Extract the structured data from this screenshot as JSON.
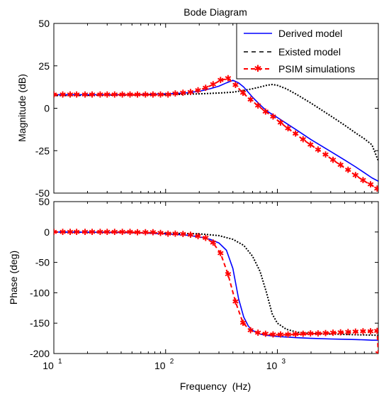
{
  "title": "Bode Diagram",
  "legend": {
    "placement": "top-right",
    "items": [
      {
        "label": "Derived model",
        "style": "solid",
        "color": "#0000ff"
      },
      {
        "label": "Existed model",
        "style": "dashed",
        "color": "#000000"
      },
      {
        "label": "PSIM simulations",
        "style": "dashed-star",
        "color": "#ff0000"
      }
    ]
  },
  "chart_data": [
    {
      "type": "line",
      "title": "Bode Diagram",
      "xlabel": "",
      "ylabel": "Magnitude (dB)",
      "xscale": "log",
      "xlim": [
        10,
        8000
      ],
      "ylim": [
        -50,
        50
      ],
      "yticks": [
        "-50",
        "-25",
        "0",
        "25",
        "50"
      ],
      "grid": false,
      "series": [
        {
          "name": "Derived model",
          "color": "#0000ff",
          "x": [
            10,
            50,
            100,
            150,
            200,
            250,
            300,
            350,
            400,
            450,
            500,
            600,
            700,
            800,
            1000,
            1500,
            2000,
            3000,
            4000,
            5000,
            6000,
            7000,
            8000
          ],
          "y": [
            8,
            8,
            8.5,
            9,
            10,
            11.5,
            13,
            15,
            16.5,
            15,
            12.5,
            6.5,
            2,
            -1.5,
            -5.5,
            -13,
            -18.5,
            -25.5,
            -30.5,
            -34.5,
            -38,
            -41,
            -43
          ]
        },
        {
          "name": "Existed model",
          "color": "#000000",
          "x": [
            10,
            100,
            200,
            300,
            400,
            500,
            600,
            700,
            800,
            900,
            1000,
            1200,
            1500,
            2000,
            3000,
            4000,
            5000,
            6000,
            7000,
            8000
          ],
          "y": [
            7.5,
            8,
            8.5,
            9,
            9.5,
            10.5,
            11.5,
            12.5,
            13.5,
            14,
            13.5,
            11.5,
            8,
            3,
            -4.5,
            -10,
            -14.5,
            -18,
            -21.5,
            -31
          ]
        },
        {
          "name": "PSIM simulations",
          "color": "#ff0000",
          "x": [
            10,
            12,
            14,
            16,
            19,
            22,
            26,
            30,
            35,
            41,
            48,
            56,
            66,
            77,
            90,
            105,
            122,
            143,
            167,
            195,
            228,
            266,
            310,
            362,
            422,
            493,
            575,
            671,
            783,
            914,
            1067,
            1245,
            1453,
            1696,
            1980,
            2310,
            2696,
            3147,
            3672,
            4286,
            5002,
            5838,
            6813,
            7800
          ],
          "y": [
            8,
            8,
            8,
            8,
            8,
            8,
            8,
            8,
            8,
            8,
            8,
            8,
            8,
            8,
            8,
            8,
            8.5,
            9,
            9.5,
            10.5,
            12,
            14,
            16.5,
            17.5,
            13.5,
            9,
            5,
            1.5,
            -2,
            -5,
            -8.5,
            -12,
            -15,
            -18.5,
            -21.5,
            -24.5,
            -27.5,
            -30.5,
            -33.5,
            -36.5,
            -39.5,
            -42.5,
            -45,
            -47.5
          ]
        }
      ]
    },
    {
      "type": "line",
      "title": "",
      "xlabel": "Frequency  (Hz)",
      "ylabel": "Phase (deg)",
      "xscale": "log",
      "xlim": [
        10,
        8000
      ],
      "ylim": [
        -200,
        50
      ],
      "yticks": [
        "-200",
        "-150",
        "-100",
        "-50",
        "0",
        "50"
      ],
      "xticks": [
        {
          "base": "10",
          "exp": "1",
          "value": 10
        },
        {
          "base": "10",
          "exp": "2",
          "value": 100
        },
        {
          "base": "10",
          "exp": "3",
          "value": 1000
        }
      ],
      "grid": false,
      "series": [
        {
          "name": "Derived model",
          "color": "#0000ff",
          "x": [
            10,
            50,
            100,
            150,
            200,
            250,
            300,
            350,
            400,
            450,
            500,
            550,
            600,
            700,
            800,
            1000,
            1500,
            2000,
            3000,
            4000,
            5000,
            6000,
            7000,
            8000
          ],
          "y": [
            0,
            -1,
            -3,
            -5,
            -8,
            -12,
            -18,
            -30,
            -60,
            -110,
            -140,
            -155,
            -162,
            -168,
            -170,
            -172,
            -174,
            -175,
            -176,
            -176.5,
            -177,
            -177.5,
            -178,
            -178
          ]
        },
        {
          "name": "Existed model",
          "color": "#000000",
          "x": [
            10,
            50,
            100,
            200,
            300,
            400,
            500,
            600,
            700,
            800,
            900,
            1000,
            1200,
            1500,
            2000,
            3000,
            5000,
            8000
          ],
          "y": [
            0,
            -1,
            -2,
            -3,
            -6,
            -12,
            -22,
            -40,
            -65,
            -100,
            -135,
            -150,
            -160,
            -165,
            -167,
            -168,
            -169,
            -170
          ]
        },
        {
          "name": "PSIM simulations",
          "color": "#ff0000",
          "x": [
            10,
            12,
            14,
            16,
            19,
            22,
            26,
            30,
            35,
            41,
            48,
            56,
            66,
            77,
            90,
            105,
            122,
            143,
            167,
            195,
            228,
            266,
            310,
            362,
            422,
            493,
            575,
            671,
            783,
            914,
            1067,
            1245,
            1453,
            1696,
            1980,
            2310,
            2696,
            3147,
            3672,
            4286,
            5002,
            5838,
            6813,
            7800,
            8000
          ],
          "y": [
            0,
            0,
            0,
            0,
            0,
            0,
            0,
            0,
            0,
            0,
            0,
            -1,
            -1,
            -1,
            -2,
            -3,
            -3,
            -4,
            -5,
            -7,
            -10,
            -18,
            -35,
            -70,
            -115,
            -150,
            -162,
            -166,
            -168,
            -169,
            -169,
            -169,
            -168.5,
            -168,
            -167.5,
            -167,
            -166.5,
            -166,
            -165.5,
            -165,
            -164.5,
            -164,
            -163.5,
            -163,
            -200
          ]
        }
      ]
    }
  ]
}
